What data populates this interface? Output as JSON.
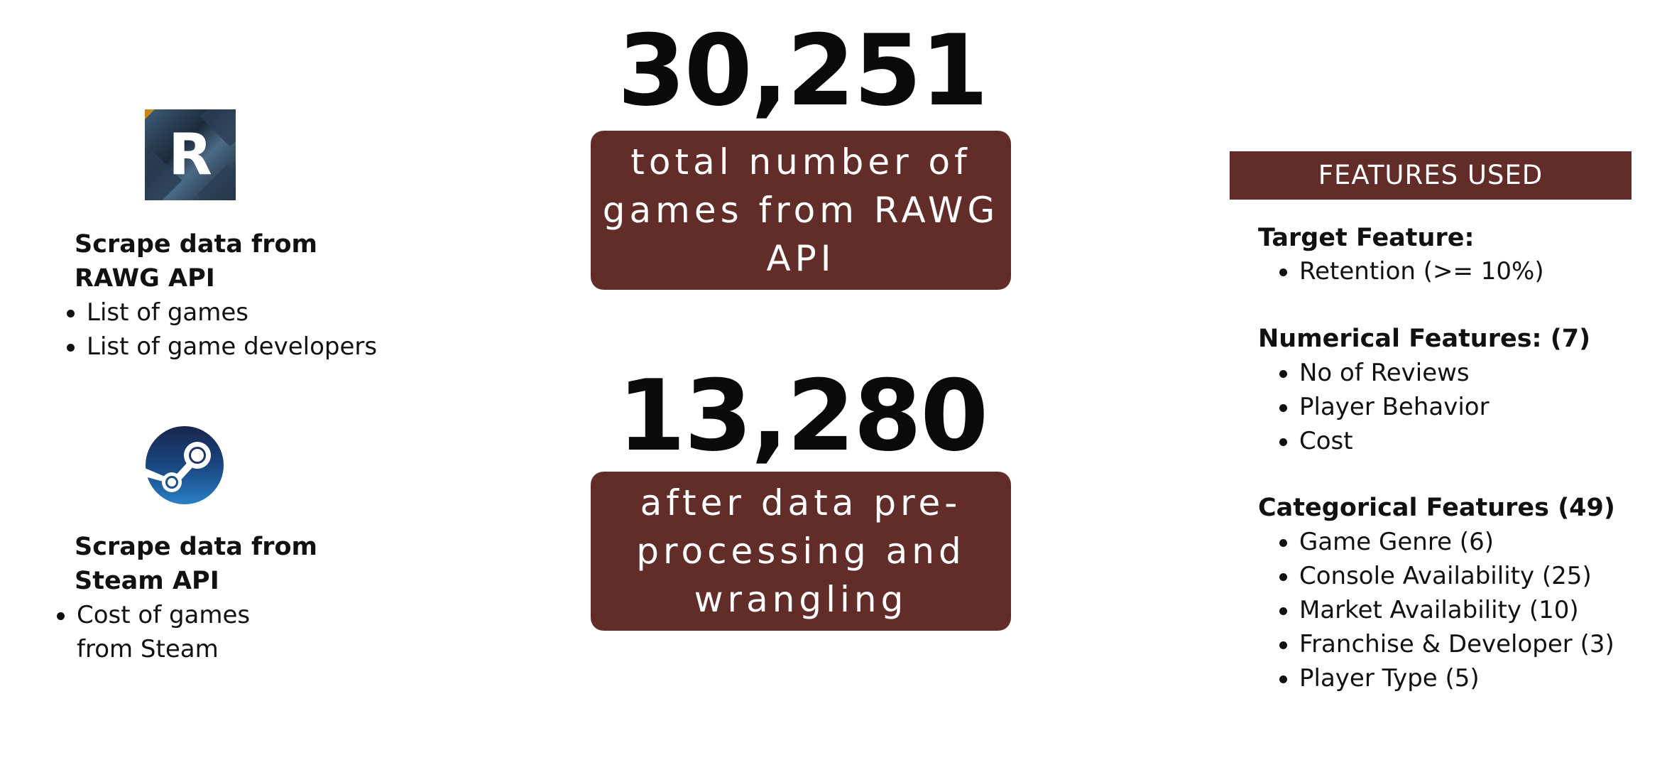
{
  "sources": {
    "rawg": {
      "logo_letter": "R",
      "title_line1": "Scrape data from",
      "title_line2": "RAWG API",
      "items": [
        "List of games",
        "List of game developers"
      ]
    },
    "steam": {
      "title_line1": "Scrape data from",
      "title_line2": "Steam API",
      "item_line1": "Cost of games",
      "item_line2": "from Steam"
    }
  },
  "stats": [
    {
      "number": "30,251",
      "line1": "total number of",
      "line2": "games from RAWG",
      "line3": "API"
    },
    {
      "number": "13,280",
      "line1": "after data pre-",
      "line2": "processing and",
      "line3": "wrangling"
    }
  ],
  "features": {
    "header": "FEATURES USED",
    "target": {
      "title": "Target Feature:",
      "items": [
        "Retention (>= 10%)"
      ]
    },
    "numerical": {
      "title": "Numerical Features: (7)",
      "items": [
        "No of Reviews",
        "Player Behavior",
        "Cost"
      ]
    },
    "categorical": {
      "title": "Categorical Features (49)",
      "items": [
        "Game Genre (6)",
        "Console Availability (25)",
        "Market Availability (10)",
        "Franchise & Developer (3)",
        "Player Type  (5)"
      ]
    }
  },
  "colors": {
    "accent_box": "#622c28",
    "text": "#111111",
    "background": "#ffffff"
  },
  "icons": [
    "rawg-logo",
    "steam-logo"
  ]
}
